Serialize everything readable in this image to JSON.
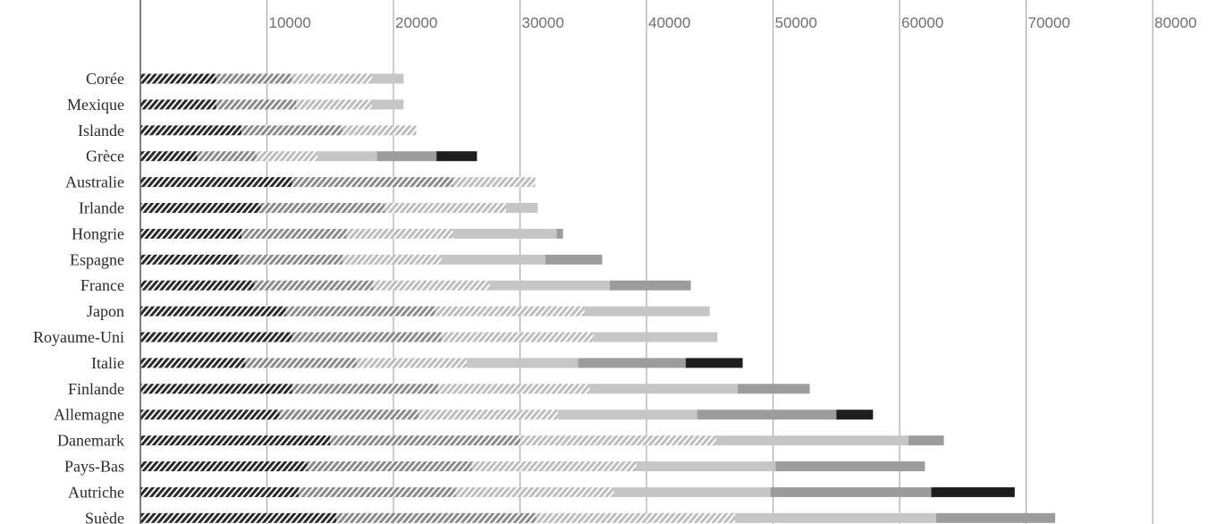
{
  "chart_data": {
    "type": "bar",
    "orientation": "horizontal",
    "stacked": true,
    "xlim": [
      0,
      80000
    ],
    "x_ticks": [
      "10000",
      "20000",
      "30000",
      "40000",
      "50000",
      "60000",
      "70000",
      "80000"
    ],
    "grid": true,
    "categories": [
      "Corée",
      "Mexique",
      "Islande",
      "Grèce",
      "Australie",
      "Irlande",
      "Hongrie",
      "Espagne",
      "France",
      "Japon",
      "Royaume-Uni",
      "Italie",
      "Finlande",
      "Allemagne",
      "Danemark",
      "Pays-Bas",
      "Autriche",
      "Suède"
    ],
    "series": [
      {
        "values": [
          6000,
          6000,
          8000,
          4500,
          12000,
          9500,
          8000,
          7800,
          9000,
          11500,
          12000,
          8300,
          12000,
          11000,
          15000,
          13200,
          12500,
          15500
        ],
        "color": "#2b2b2b",
        "pattern": "hatch-dark"
      },
      {
        "values": [
          6000,
          6300,
          8000,
          4700,
          12700,
          9800,
          8300,
          8200,
          9400,
          11800,
          11800,
          8800,
          11500,
          11000,
          15000,
          13000,
          12400,
          15800
        ],
        "color": "#8a8a8a",
        "pattern": "hatch-mid"
      },
      {
        "values": [
          6300,
          6000,
          5800,
          4800,
          6500,
          9600,
          8400,
          7800,
          9200,
          11800,
          12000,
          8700,
          12000,
          11000,
          15500,
          13000,
          12500,
          15700
        ],
        "color": "#bdbdbd",
        "pattern": "hatch-light"
      },
      {
        "values": [
          2500,
          2500,
          0,
          4700,
          0,
          2500,
          8200,
          8200,
          9500,
          9900,
          9800,
          8800,
          11700,
          11000,
          15200,
          11000,
          12400,
          15900
        ],
        "color": "#c6c6c6",
        "pattern": "solid"
      },
      {
        "values": [
          0,
          0,
          0,
          4700,
          0,
          0,
          500,
          4500,
          6400,
          0,
          0,
          8500,
          5700,
          11000,
          2800,
          11800,
          12700,
          9400
        ],
        "color": "#9c9c9c",
        "pattern": "solid"
      },
      {
        "values": [
          0,
          0,
          0,
          3200,
          0,
          0,
          0,
          0,
          0,
          0,
          0,
          4500,
          0,
          2900,
          0,
          0,
          6600,
          0
        ],
        "color": "#1e1e1e",
        "pattern": "solid"
      }
    ]
  }
}
